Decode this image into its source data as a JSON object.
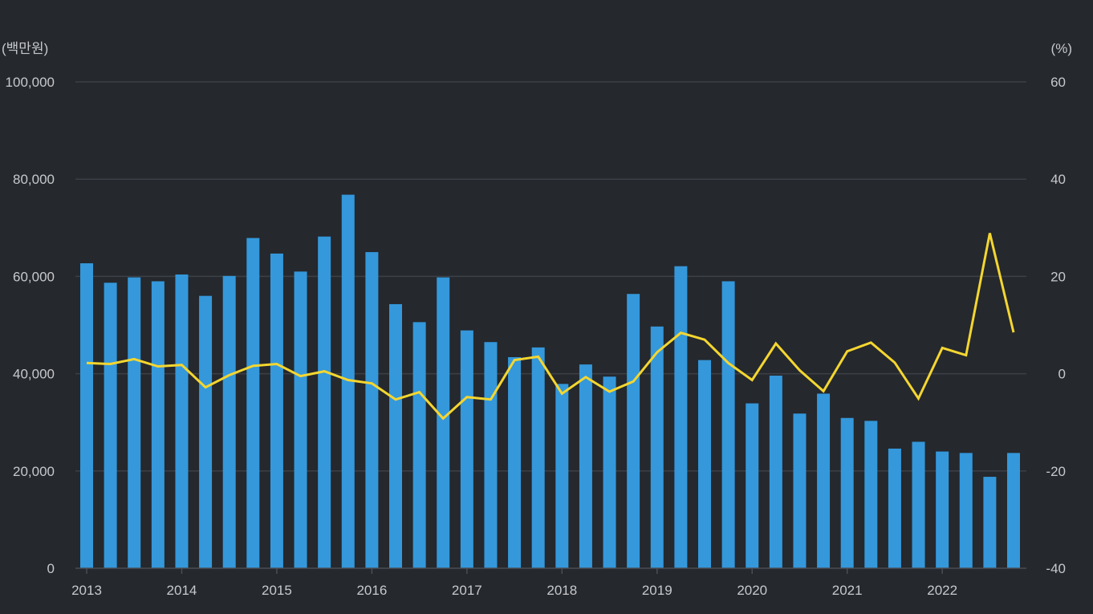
{
  "chart_data": {
    "type": "bar",
    "left_unit": "(백만원)",
    "right_unit": "(%)",
    "y_left_ticks": [
      "100,000",
      "80,000",
      "60,000",
      "40,000",
      "20,000",
      "0"
    ],
    "y_right_ticks": [
      "60",
      "40",
      "20",
      "0",
      "-20",
      "-40"
    ],
    "ylim_left": [
      0,
      100000
    ],
    "ylim_right": [
      -40,
      60
    ],
    "x_tick_labels": [
      "2013",
      "2014",
      "2015",
      "2016",
      "2017",
      "2018",
      "2019",
      "2020",
      "2021",
      "2022"
    ],
    "grid": true,
    "categories": [
      "2013Q1",
      "2013Q2",
      "2013Q3",
      "2013Q4",
      "2014Q1",
      "2014Q2",
      "2014Q3",
      "2014Q4",
      "2015Q1",
      "2015Q2",
      "2015Q3",
      "2015Q4",
      "2016Q1",
      "2016Q2",
      "2016Q3",
      "2016Q4",
      "2017Q1",
      "2017Q2",
      "2017Q3",
      "2017Q4",
      "2018Q1",
      "2018Q2",
      "2018Q3",
      "2018Q4",
      "2019Q1",
      "2019Q2",
      "2019Q3",
      "2019Q4",
      "2020Q1",
      "2020Q2",
      "2020Q3",
      "2020Q4",
      "2021Q1",
      "2021Q2",
      "2021Q3",
      "2021Q4",
      "2022Q1",
      "2022Q2",
      "2022Q3",
      "2022Q4"
    ],
    "series": [
      {
        "axis": "left",
        "kind": "bar",
        "color": "#3498db",
        "values": [
          62700,
          58700,
          59800,
          59000,
          60400,
          56000,
          60100,
          67900,
          64700,
          61000,
          68200,
          76800,
          65000,
          54300,
          50600,
          59800,
          48900,
          46500,
          43400,
          45400,
          37900,
          41900,
          39400,
          56400,
          49700,
          62100,
          42800,
          59000,
          33900,
          39600,
          31800,
          35900,
          30900,
          30300,
          24600,
          26000,
          24000,
          23700,
          18800,
          23700
        ]
      },
      {
        "axis": "right",
        "kind": "line",
        "color": "#f4d630",
        "values": [
          2.2,
          2.0,
          3.0,
          1.5,
          1.8,
          -2.8,
          -0.3,
          1.6,
          2.0,
          -0.5,
          0.5,
          -1.3,
          -2.0,
          -5.3,
          -3.8,
          -9.2,
          -4.8,
          -5.3,
          2.8,
          3.5,
          -4.1,
          -0.7,
          -3.7,
          -1.6,
          4.4,
          8.4,
          7.0,
          2.2,
          -1.3,
          6.2,
          0.7,
          -3.6,
          4.6,
          6.4,
          2.3,
          -5.1,
          5.3,
          3.8,
          28.9,
          8.5
        ]
      }
    ]
  }
}
